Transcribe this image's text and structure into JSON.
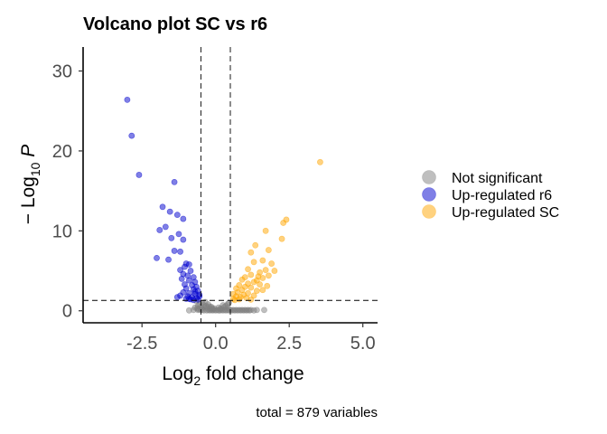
{
  "chart_data": {
    "type": "scatter",
    "title": "Volcano plot SC vs r6",
    "xlabel_parts": [
      "Log",
      "2",
      " fold change"
    ],
    "ylabel_parts": [
      "− Log",
      "10",
      " P"
    ],
    "caption": "total = 879 variables",
    "xlim": [
      -4.5,
      5.5
    ],
    "ylim": [
      -1.5,
      33
    ],
    "x_ticks": [
      -2.5,
      0,
      2.5,
      5
    ],
    "x_tick_labels": [
      "-2.5",
      "0.0",
      "2.5",
      "5.0"
    ],
    "y_ticks": [
      0,
      10,
      20,
      30
    ],
    "y_tick_labels": [
      "0",
      "10",
      "20",
      "30"
    ],
    "grid": false,
    "legend_position": "right",
    "fc_cutoff": 0.5,
    "p_cutoff": 1.3,
    "series": [
      {
        "name": "Not significant",
        "color": "#808080",
        "points": [
          [
            -0.9,
            0.05
          ],
          [
            -0.75,
            0.1
          ],
          [
            -0.6,
            0.1
          ],
          [
            -0.5,
            0.1
          ],
          [
            -0.45,
            0.1
          ],
          [
            -0.4,
            0.05
          ],
          [
            -0.3,
            0.05
          ],
          [
            -0.25,
            0.1
          ],
          [
            -0.2,
            0.05
          ],
          [
            -0.15,
            0.1
          ],
          [
            -0.1,
            0.05
          ],
          [
            -0.05,
            0.1
          ],
          [
            0.0,
            0.05
          ],
          [
            0.05,
            0.1
          ],
          [
            0.1,
            0.05
          ],
          [
            0.15,
            0.05
          ],
          [
            0.2,
            0.1
          ],
          [
            0.25,
            0.05
          ],
          [
            0.3,
            0.1
          ],
          [
            0.35,
            0.05
          ],
          [
            0.4,
            0.1
          ],
          [
            0.45,
            0.05
          ],
          [
            0.5,
            0.1
          ],
          [
            0.55,
            0.05
          ],
          [
            0.6,
            0.1
          ],
          [
            0.65,
            0.05
          ],
          [
            0.7,
            0.1
          ],
          [
            0.75,
            0.05
          ],
          [
            0.8,
            0.1
          ],
          [
            0.85,
            0.05
          ],
          [
            0.9,
            0.1
          ],
          [
            0.95,
            0.05
          ],
          [
            1.0,
            0.1
          ],
          [
            1.05,
            0.05
          ],
          [
            1.1,
            0.1
          ],
          [
            1.15,
            0.05
          ],
          [
            1.2,
            0.1
          ],
          [
            1.3,
            0.05
          ],
          [
            1.4,
            0.1
          ],
          [
            1.65,
            0.1
          ],
          [
            -0.7,
            0.4
          ],
          [
            -0.6,
            0.6
          ],
          [
            -0.55,
            0.9
          ],
          [
            -0.5,
            0.5
          ],
          [
            -0.45,
            1.0
          ],
          [
            -0.4,
            0.7
          ],
          [
            -0.35,
            1.1
          ],
          [
            -0.3,
            0.4
          ],
          [
            -0.25,
            0.8
          ],
          [
            -0.2,
            0.3
          ],
          [
            -0.15,
            0.5
          ],
          [
            -0.1,
            0.2
          ],
          [
            0.2,
            0.3
          ],
          [
            0.3,
            0.5
          ],
          [
            0.4,
            0.8
          ],
          [
            0.45,
            1.0
          ],
          [
            -0.65,
            1.2
          ],
          [
            0.1,
            0.4
          ],
          [
            -0.05,
            0.3
          ],
          [
            0.35,
            0.6
          ],
          [
            -0.62,
            0.3
          ],
          [
            -0.58,
            0.2
          ],
          [
            -0.48,
            0.3
          ],
          [
            -0.42,
            0.45
          ],
          [
            -0.32,
            0.6
          ],
          [
            -0.22,
            0.55
          ],
          [
            -0.12,
            0.35
          ],
          [
            0.15,
            0.25
          ],
          [
            0.25,
            0.7
          ],
          [
            0.42,
            0.35
          ]
        ]
      },
      {
        "name": "Up-regulated r6",
        "color": "#0000CD",
        "points": [
          [
            -3.0,
            26.4
          ],
          [
            -2.85,
            21.9
          ],
          [
            -2.6,
            17.0
          ],
          [
            -1.4,
            16.1
          ],
          [
            -1.8,
            13.0
          ],
          [
            -1.55,
            12.4
          ],
          [
            -1.3,
            12.0
          ],
          [
            -1.1,
            11.5
          ],
          [
            -1.7,
            10.5
          ],
          [
            -1.9,
            10.1
          ],
          [
            -1.25,
            9.6
          ],
          [
            -1.5,
            9.1
          ],
          [
            -1.1,
            8.9
          ],
          [
            -1.4,
            7.5
          ],
          [
            -1.2,
            7.4
          ],
          [
            -2.0,
            6.6
          ],
          [
            -1.6,
            6.4
          ],
          [
            -1.0,
            5.9
          ],
          [
            -0.9,
            5.8
          ],
          [
            -1.05,
            5.5
          ],
          [
            -1.2,
            5.1
          ],
          [
            -0.85,
            5.0
          ],
          [
            -1.1,
            4.6
          ],
          [
            -0.95,
            4.4
          ],
          [
            -0.75,
            4.2
          ],
          [
            -1.15,
            4.0
          ],
          [
            -0.9,
            3.8
          ],
          [
            -0.7,
            3.6
          ],
          [
            -1.05,
            3.3
          ],
          [
            -0.8,
            3.2
          ],
          [
            -0.65,
            3.0
          ],
          [
            -1.0,
            2.8
          ],
          [
            -0.75,
            2.7
          ],
          [
            -0.6,
            2.5
          ],
          [
            -1.1,
            2.3
          ],
          [
            -0.9,
            2.2
          ],
          [
            -0.7,
            2.1
          ],
          [
            -0.55,
            2.0
          ],
          [
            -1.2,
            1.9
          ],
          [
            -0.95,
            1.8
          ],
          [
            -0.8,
            1.7
          ],
          [
            -0.65,
            1.6
          ],
          [
            -1.0,
            1.5
          ],
          [
            -0.85,
            1.45
          ],
          [
            -0.6,
            1.4
          ],
          [
            -0.75,
            1.35
          ],
          [
            -0.9,
            1.5
          ],
          [
            -0.55,
            1.8
          ],
          [
            -1.3,
            1.7
          ],
          [
            -0.7,
            2.4
          ]
        ]
      },
      {
        "name": "Up-regulated SC",
        "color": "#FFA500",
        "points": [
          [
            3.55,
            18.6
          ],
          [
            2.4,
            11.4
          ],
          [
            2.3,
            11.0
          ],
          [
            1.7,
            10.0
          ],
          [
            2.25,
            9.0
          ],
          [
            1.35,
            8.2
          ],
          [
            1.8,
            7.6
          ],
          [
            1.2,
            7.3
          ],
          [
            1.6,
            6.3
          ],
          [
            1.3,
            6.1
          ],
          [
            1.9,
            5.9
          ],
          [
            1.7,
            5.1
          ],
          [
            2.0,
            5.0
          ],
          [
            1.1,
            5.2
          ],
          [
            1.5,
            4.8
          ],
          [
            1.2,
            4.5
          ],
          [
            1.8,
            4.4
          ],
          [
            1.0,
            4.2
          ],
          [
            1.6,
            4.1
          ],
          [
            0.9,
            3.9
          ],
          [
            1.4,
            3.8
          ],
          [
            1.3,
            3.6
          ],
          [
            1.1,
            3.4
          ],
          [
            1.5,
            3.3
          ],
          [
            0.8,
            3.2
          ],
          [
            1.0,
            3.0
          ],
          [
            1.2,
            2.9
          ],
          [
            0.7,
            2.8
          ],
          [
            0.9,
            2.6
          ],
          [
            1.4,
            2.5
          ],
          [
            0.75,
            2.3
          ],
          [
            1.1,
            2.2
          ],
          [
            0.6,
            2.1
          ],
          [
            0.95,
            2.0
          ],
          [
            1.3,
            1.9
          ],
          [
            0.7,
            1.8
          ],
          [
            0.85,
            1.7
          ],
          [
            1.05,
            1.6
          ],
          [
            0.6,
            1.5
          ],
          [
            0.8,
            1.45
          ],
          [
            1.2,
            1.4
          ],
          [
            0.65,
            1.35
          ],
          [
            1.6,
            2.6
          ],
          [
            1.75,
            3.1
          ],
          [
            1.45,
            4.3
          ]
        ]
      }
    ]
  }
}
